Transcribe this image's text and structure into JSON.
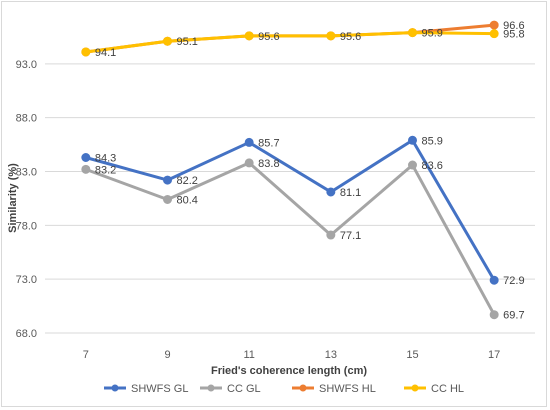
{
  "chart_data": {
    "type": "line",
    "title": "",
    "xlabel": "Fried's coherence length (cm)",
    "ylabel": "Similarity (%)",
    "categories": [
      "7",
      "9",
      "11",
      "13",
      "15",
      "17"
    ],
    "ylim": [
      68.0,
      98.0
    ],
    "yticks": [
      "68.0",
      "73.0",
      "78.0",
      "83.0",
      "88.0",
      "93.0"
    ],
    "grid": true,
    "legend_position": "bottom",
    "series": [
      {
        "name": "SHWFS GL",
        "color": "#4472c4",
        "values": [
          84.3,
          82.2,
          85.7,
          81.1,
          85.9,
          72.9
        ],
        "labels": [
          "84.3",
          "82.2",
          "85.7",
          "81.1",
          "85.9",
          "72.9"
        ]
      },
      {
        "name": "CC GL",
        "color": "#a5a5a5",
        "values": [
          83.2,
          80.4,
          83.8,
          77.1,
          83.6,
          69.7
        ],
        "labels": [
          "83.2",
          "80.4",
          "83.8",
          "77.1",
          "83.6",
          "69.7"
        ]
      },
      {
        "name": "SHWFS HL",
        "color": "#ed7d31",
        "values": [
          94.1,
          95.1,
          95.6,
          95.6,
          95.9,
          96.6
        ],
        "labels": [
          "",
          "",
          "",
          "",
          "",
          "96.6"
        ]
      },
      {
        "name": "CC HL",
        "color": "#ffc000",
        "values": [
          94.1,
          95.1,
          95.6,
          95.6,
          95.9,
          95.8
        ],
        "labels": [
          "94.1",
          "95.1",
          "95.6",
          "95.6",
          "95.9",
          "95.8"
        ]
      }
    ]
  }
}
